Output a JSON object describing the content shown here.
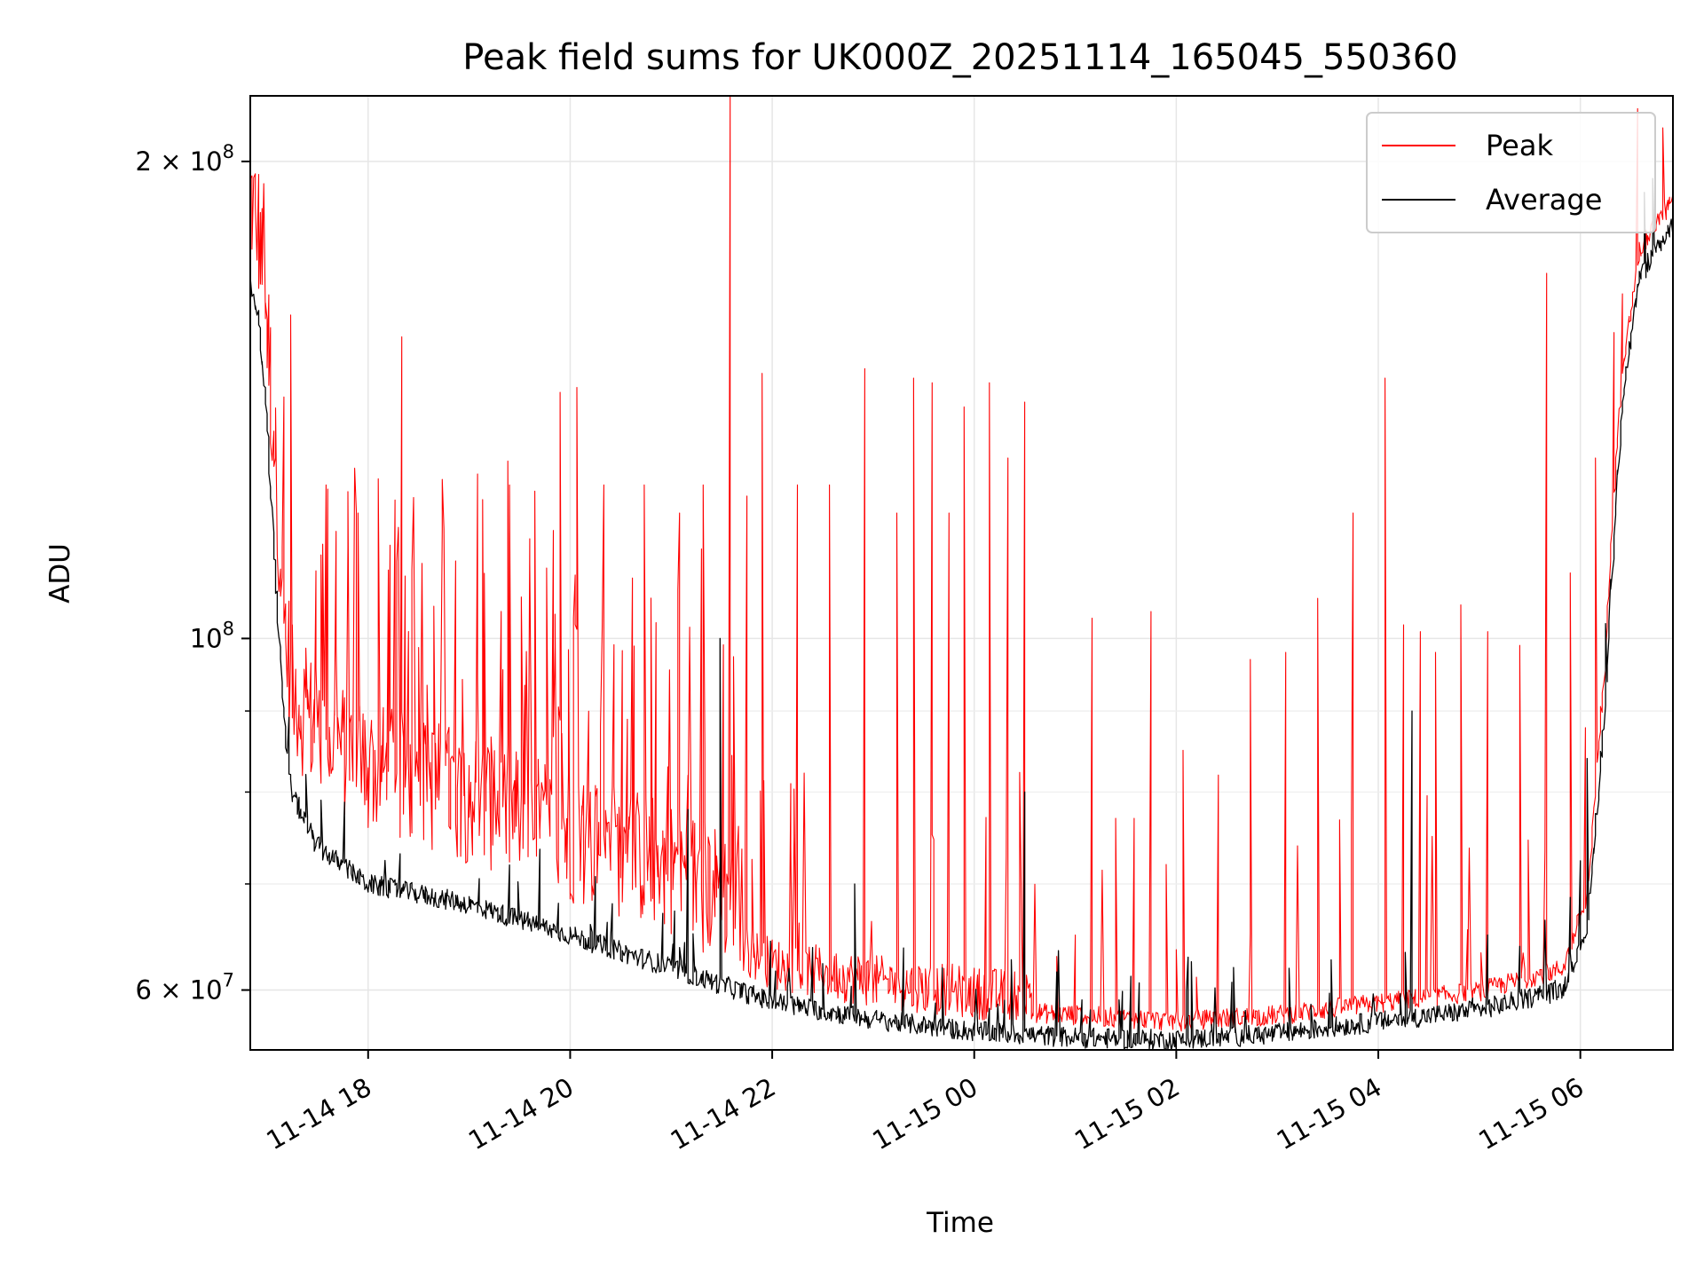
{
  "chart_data": {
    "type": "line",
    "title": "Peak field sums for UK000Z_20251114_165045_550360",
    "xlabel": "Time",
    "ylabel": "ADU",
    "yscale": "log",
    "xlim": [
      "2025-11-14T16:50",
      "2025-11-15T06:55"
    ],
    "ylim": [
      55000000,
      220000000
    ],
    "grid": true,
    "legend_position": "top-right",
    "x_ticks": [
      {
        "value": "2025-11-14T18:00",
        "label": "11-14 18"
      },
      {
        "value": "2025-11-14T20:00",
        "label": "11-14 20"
      },
      {
        "value": "2025-11-14T22:00",
        "label": "11-14 22"
      },
      {
        "value": "2025-11-15T00:00",
        "label": "11-15 00"
      },
      {
        "value": "2025-11-15T02:00",
        "label": "11-15 02"
      },
      {
        "value": "2025-11-15T04:00",
        "label": "11-15 04"
      },
      {
        "value": "2025-11-15T06:00",
        "label": "11-15 06"
      }
    ],
    "y_major_ticks": [
      {
        "value": 60000000,
        "label_base": "6 × 10",
        "label_exp": "7"
      },
      {
        "value": 100000000,
        "label_base": "10",
        "label_exp": "8"
      },
      {
        "value": 200000000,
        "label_base": "2 × 10",
        "label_exp": "8"
      }
    ],
    "y_minor_ticks": [
      70000000,
      80000000,
      90000000
    ],
    "series": [
      {
        "name": "Peak",
        "color": "#ff0000",
        "baseline": [
          [
            "2025-11-14T16:50",
            172000000
          ],
          [
            "2025-11-14T16:55",
            165000000
          ],
          [
            "2025-11-14T17:00",
            145000000
          ],
          [
            "2025-11-14T17:05",
            120000000
          ],
          [
            "2025-11-14T17:10",
            95000000
          ],
          [
            "2025-11-14T17:15",
            84000000
          ],
          [
            "2025-11-14T17:30",
            79000000
          ],
          [
            "2025-11-14T18:00",
            75000000
          ],
          [
            "2025-11-14T19:00",
            72000000
          ],
          [
            "2025-11-14T20:00",
            68000000
          ],
          [
            "2025-11-14T21:00",
            65000000
          ],
          [
            "2025-11-14T22:00",
            60000000
          ],
          [
            "2025-11-14T23:00",
            58500000
          ],
          [
            "2025-11-15T00:00",
            57500000
          ],
          [
            "2025-11-15T01:00",
            57000000
          ],
          [
            "2025-11-15T02:00",
            56500000
          ],
          [
            "2025-11-15T03:00",
            57000000
          ],
          [
            "2025-11-15T04:00",
            58000000
          ],
          [
            "2025-11-15T05:00",
            59000000
          ],
          [
            "2025-11-15T05:50",
            61000000
          ],
          [
            "2025-11-15T06:05",
            68000000
          ],
          [
            "2025-11-15T06:15",
            95000000
          ],
          [
            "2025-11-15T06:25",
            145000000
          ],
          [
            "2025-11-15T06:35",
            172000000
          ],
          [
            "2025-11-15T06:45",
            180000000
          ],
          [
            "2025-11-15T06:55",
            186000000
          ]
        ],
        "spikes": [
          [
            "2025-11-14T17:05",
            130000000
          ],
          [
            "2025-11-14T17:15",
            160000000
          ],
          [
            "2025-11-14T17:35",
            125000000
          ],
          [
            "2025-11-14T17:55",
            120000000
          ],
          [
            "2025-11-14T18:20",
            155000000
          ],
          [
            "2025-11-14T18:45",
            126000000
          ],
          [
            "2025-11-14T19:05",
            127000000
          ],
          [
            "2025-11-14T19:25",
            125000000
          ],
          [
            "2025-11-14T19:50",
            117000000
          ],
          [
            "2025-11-14T19:55",
            143000000
          ],
          [
            "2025-11-14T20:05",
            144000000
          ],
          [
            "2025-11-14T20:20",
            125000000
          ],
          [
            "2025-11-14T20:45",
            125000000
          ],
          [
            "2025-11-14T21:05",
            120000000
          ],
          [
            "2025-11-14T21:20",
            125000000
          ],
          [
            "2025-11-14T21:35",
            220000000
          ],
          [
            "2025-11-14T21:45",
            123000000
          ],
          [
            "2025-11-14T21:55",
            147000000
          ],
          [
            "2025-11-14T22:15",
            125000000
          ],
          [
            "2025-11-14T22:35",
            125000000
          ],
          [
            "2025-11-14T22:55",
            148000000
          ],
          [
            "2025-11-14T23:15",
            120000000
          ],
          [
            "2025-11-14T23:25",
            146000000
          ],
          [
            "2025-11-14T23:35",
            145000000
          ],
          [
            "2025-11-14T23:45",
            120000000
          ],
          [
            "2025-11-14T23:55",
            140000000
          ],
          [
            "2025-11-15T00:10",
            145000000
          ],
          [
            "2025-11-15T00:20",
            130000000
          ],
          [
            "2025-11-15T00:30",
            141000000
          ],
          [
            "2025-11-15T00:50",
            63000000
          ],
          [
            "2025-11-15T01:00",
            65000000
          ],
          [
            "2025-11-15T01:10",
            103000000
          ],
          [
            "2025-11-15T01:25",
            77000000
          ],
          [
            "2025-11-15T01:35",
            77000000
          ],
          [
            "2025-11-15T01:45",
            104000000
          ],
          [
            "2025-11-15T01:55",
            72000000
          ],
          [
            "2025-11-15T02:05",
            85000000
          ],
          [
            "2025-11-15T02:25",
            82000000
          ],
          [
            "2025-11-15T02:45",
            97000000
          ],
          [
            "2025-11-15T03:05",
            98000000
          ],
          [
            "2025-11-15T03:25",
            106000000
          ],
          [
            "2025-11-15T03:45",
            120000000
          ],
          [
            "2025-11-15T04:05",
            146000000
          ],
          [
            "2025-11-15T04:15",
            102000000
          ],
          [
            "2025-11-15T04:25",
            101000000
          ],
          [
            "2025-11-15T04:35",
            98000000
          ],
          [
            "2025-11-15T04:50",
            105000000
          ],
          [
            "2025-11-15T05:05",
            101000000
          ],
          [
            "2025-11-15T05:25",
            99000000
          ],
          [
            "2025-11-15T05:40",
            170000000
          ],
          [
            "2025-11-15T05:55",
            110000000
          ],
          [
            "2025-11-15T06:10",
            130000000
          ],
          [
            "2025-11-15T06:25",
            165000000
          ],
          [
            "2025-11-15T06:50",
            210000000
          ]
        ]
      },
      {
        "name": "Average",
        "color": "#000000",
        "baseline": [
          [
            "2025-11-14T16:50",
            168000000
          ],
          [
            "2025-11-14T16:55",
            160000000
          ],
          [
            "2025-11-14T17:00",
            140000000
          ],
          [
            "2025-11-14T17:05",
            112000000
          ],
          [
            "2025-11-14T17:10",
            90000000
          ],
          [
            "2025-11-14T17:15",
            80000000
          ],
          [
            "2025-11-14T17:30",
            74000000
          ],
          [
            "2025-11-14T18:00",
            70000000
          ],
          [
            "2025-11-14T19:00",
            68000000
          ],
          [
            "2025-11-14T20:00",
            65000000
          ],
          [
            "2025-11-14T21:00",
            62000000
          ],
          [
            "2025-11-14T22:00",
            59000000
          ],
          [
            "2025-11-14T23:00",
            57500000
          ],
          [
            "2025-11-15T00:00",
            56500000
          ],
          [
            "2025-11-15T01:00",
            56000000
          ],
          [
            "2025-11-15T02:00",
            55800000
          ],
          [
            "2025-11-15T03:00",
            56300000
          ],
          [
            "2025-11-15T04:00",
            57300000
          ],
          [
            "2025-11-15T05:00",
            58300000
          ],
          [
            "2025-11-15T05:50",
            60000000
          ],
          [
            "2025-11-15T06:05",
            66000000
          ],
          [
            "2025-11-15T06:15",
            90000000
          ],
          [
            "2025-11-15T06:25",
            140000000
          ],
          [
            "2025-11-15T06:35",
            168000000
          ],
          [
            "2025-11-15T06:45",
            176000000
          ],
          [
            "2025-11-15T06:55",
            182000000
          ]
        ],
        "spikes": [
          [
            "2025-11-14T21:30",
            100000000
          ],
          [
            "2025-11-14T21:10",
            78000000
          ],
          [
            "2025-11-14T22:50",
            70000000
          ],
          [
            "2025-11-15T00:30",
            80000000
          ],
          [
            "2025-11-15T02:35",
            62000000
          ],
          [
            "2025-11-15T04:20",
            90000000
          ],
          [
            "2025-11-15T05:05",
            65000000
          ],
          [
            "2025-11-15T06:05",
            84000000
          ]
        ]
      }
    ]
  }
}
